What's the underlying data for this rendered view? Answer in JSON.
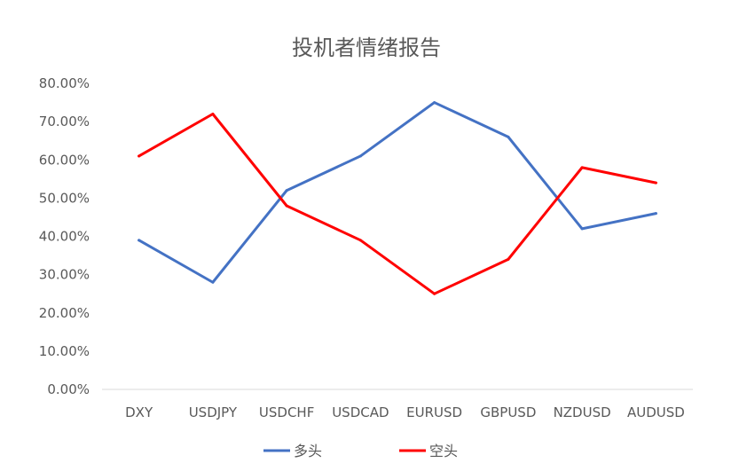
{
  "chart_data": {
    "type": "line",
    "title": "投机者情绪报告",
    "categories": [
      "DXY",
      "USDJPY",
      "USDCHF",
      "USDCAD",
      "EURUSD",
      "GBPUSD",
      "NZDUSD",
      "AUDUSD"
    ],
    "series": [
      {
        "name": "多头",
        "color": "#4472C4",
        "values": [
          0.39,
          0.28,
          0.52,
          0.61,
          0.75,
          0.66,
          0.42,
          0.46
        ]
      },
      {
        "name": "空头",
        "color": "#FF0000",
        "values": [
          0.61,
          0.72,
          0.48,
          0.39,
          0.25,
          0.34,
          0.58,
          0.54
        ]
      }
    ],
    "ylim": [
      0,
      0.8
    ],
    "yticks": [
      "0.00%",
      "10.00%",
      "20.00%",
      "30.00%",
      "40.00%",
      "50.00%",
      "60.00%",
      "70.00%",
      "80.00%"
    ],
    "xlabel": "",
    "ylabel": "",
    "grid": false,
    "legend_position": "bottom"
  }
}
